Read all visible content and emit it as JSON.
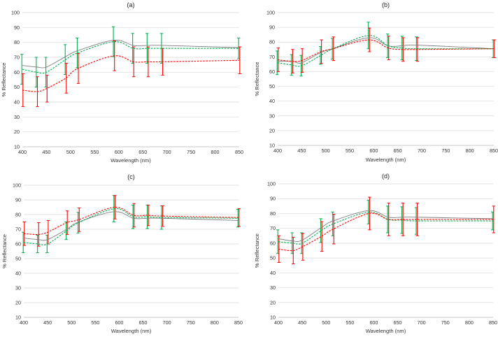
{
  "colors": {
    "grey": "#7f7f7f",
    "green": "#00b050",
    "red": "#ff0000",
    "grid": "#d9d9d9",
    "axis": "#bfbfbf"
  },
  "chart_data": [
    {
      "type": "line",
      "title": "(a)",
      "xlabel": "Wavelength (nm)",
      "ylabel": "% Reflectance",
      "xlim": [
        400,
        850
      ],
      "ylim": [
        10,
        100
      ],
      "xticks": [
        400,
        450,
        500,
        550,
        600,
        650,
        700,
        750,
        800,
        850
      ],
      "yticks": [
        10,
        20,
        30,
        40,
        50,
        60,
        70,
        80,
        90,
        100
      ],
      "x": [
        400,
        430,
        450,
        490,
        515,
        590,
        630,
        660,
        690,
        850
      ],
      "series": [
        {
          "name": "grey",
          "color": "grey",
          "style": "solid",
          "values": [
            64.5,
            63.5,
            63.5,
            70.5,
            74.5,
            81.5,
            78,
            78,
            78,
            76.5
          ]
        },
        {
          "name": "green",
          "color": "green",
          "style": "dashed",
          "values": [
            62,
            60,
            60,
            68.5,
            73,
            80.5,
            76,
            76,
            76,
            76
          ],
          "error": [
            10,
            10,
            10,
            10,
            10,
            10,
            10,
            10,
            10,
            7
          ]
        },
        {
          "name": "red",
          "color": "red",
          "style": "dashed",
          "values": [
            48,
            47,
            49,
            56,
            62.5,
            71,
            67,
            67,
            67,
            68
          ],
          "error": [
            11,
            10,
            9,
            10,
            10,
            10,
            10,
            10,
            9,
            9
          ]
        }
      ]
    },
    {
      "type": "line",
      "title": "(b)",
      "xlabel": "Wavelength (nm)",
      "ylabel": "% Reflectance",
      "xlim": [
        400,
        850
      ],
      "ylim": [
        10,
        100
      ],
      "xticks": [
        400,
        450,
        500,
        550,
        600,
        650,
        700,
        750,
        800,
        850
      ],
      "yticks": [
        10,
        20,
        30,
        40,
        50,
        60,
        70,
        80,
        90,
        100
      ],
      "x": [
        400,
        430,
        450,
        490,
        515,
        590,
        630,
        660,
        690,
        850
      ],
      "series": [
        {
          "name": "grey",
          "color": "grey",
          "style": "solid",
          "values": [
            67,
            67,
            66,
            73,
            75.5,
            83,
            77.5,
            77.5,
            78,
            75.5
          ]
        },
        {
          "name": "green",
          "color": "green",
          "style": "dashed",
          "values": [
            66,
            64.5,
            64,
            71,
            75.5,
            84.5,
            77.5,
            76,
            75.5,
            75.5
          ],
          "error": [
            8,
            7,
            7,
            6,
            7,
            9,
            8,
            8,
            8,
            6
          ]
        },
        {
          "name": "red",
          "color": "red",
          "style": "dashed",
          "values": [
            68,
            67,
            67.5,
            73.5,
            75.5,
            81.5,
            76,
            75,
            75,
            75.5
          ],
          "error": [
            8,
            8,
            8,
            8,
            8,
            8,
            8,
            8,
            8,
            6
          ]
        }
      ]
    },
    {
      "type": "line",
      "title": "(c)",
      "xlabel": "Wavelength (nm)",
      "ylabel": "% Reflectance",
      "xlim": [
        400,
        850
      ],
      "ylim": [
        10,
        100
      ],
      "xticks": [
        400,
        450,
        500,
        550,
        600,
        650,
        700,
        750,
        800,
        850
      ],
      "yticks": [
        10,
        20,
        30,
        40,
        50,
        60,
        70,
        80,
        90,
        100
      ],
      "x": [
        400,
        430,
        450,
        490,
        515,
        590,
        630,
        660,
        690,
        850
      ],
      "series": [
        {
          "name": "grey",
          "color": "grey",
          "style": "solid",
          "values": [
            64,
            63,
            63,
            70,
            75,
            82,
            77.5,
            77.5,
            77.5,
            76
          ]
        },
        {
          "name": "green",
          "color": "green",
          "style": "dashed",
          "values": [
            61,
            60,
            60,
            69,
            74.5,
            84,
            78.5,
            78.5,
            78,
            77.5
          ],
          "error": [
            7,
            6,
            6,
            6,
            7,
            9,
            8,
            8,
            8,
            6
          ]
        },
        {
          "name": "red",
          "color": "red",
          "style": "dashed",
          "values": [
            67,
            66.5,
            68,
            74.5,
            76.5,
            85,
            79.5,
            79.5,
            79,
            78
          ],
          "error": [
            8,
            8,
            8,
            8,
            8,
            8,
            8,
            7,
            7,
            6
          ]
        }
      ]
    },
    {
      "type": "line",
      "title": "(d)",
      "xlabel": "Wavelength (nm)",
      "ylabel": "% Reflectance",
      "xlim": [
        400,
        850
      ],
      "ylim": [
        10,
        100
      ],
      "xticks": [
        400,
        450,
        500,
        550,
        600,
        650,
        700,
        750,
        800,
        850
      ],
      "yticks": [
        10,
        20,
        30,
        40,
        50,
        60,
        70,
        80,
        90,
        100
      ],
      "x": [
        400,
        430,
        450,
        490,
        515,
        590,
        630,
        660,
        690,
        850
      ],
      "series": [
        {
          "name": "grey",
          "color": "grey",
          "style": "solid",
          "values": [
            63,
            61.5,
            62,
            70.5,
            75,
            82,
            77.5,
            77.5,
            77.5,
            76.5
          ]
        },
        {
          "name": "green",
          "color": "green",
          "style": "dashed",
          "values": [
            61,
            60,
            60,
            68.5,
            73,
            81,
            76,
            75.5,
            75,
            75
          ],
          "error": [
            8,
            7,
            7,
            8,
            8,
            8,
            9,
            9,
            9,
            6
          ]
        },
        {
          "name": "red",
          "color": "red",
          "style": "dashed",
          "values": [
            56,
            55,
            57.5,
            64.5,
            69.5,
            80,
            76,
            76,
            76,
            76
          ],
          "error": [
            9,
            9,
            9,
            10,
            10,
            11,
            11,
            11,
            11,
            9
          ]
        }
      ]
    }
  ]
}
